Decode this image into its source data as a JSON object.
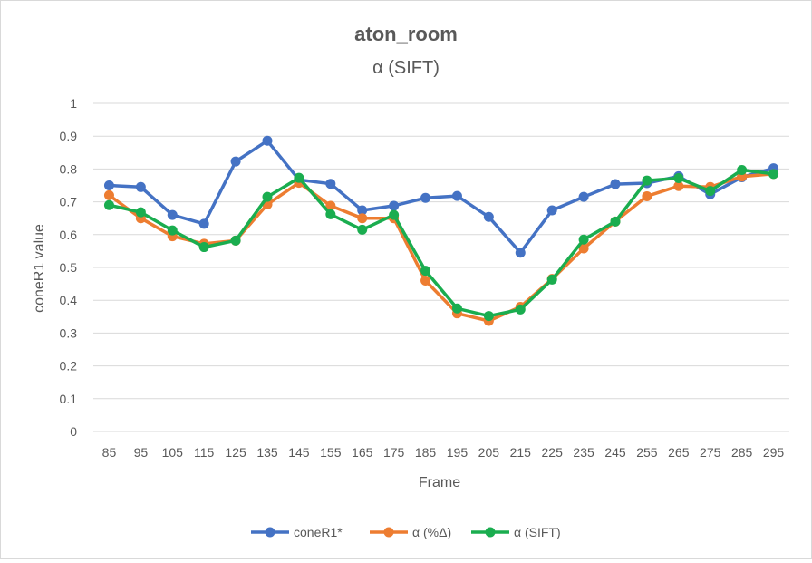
{
  "chart_data": {
    "type": "line",
    "title": "aton_room",
    "subtitle": "α (SIFT)",
    "xlabel": "Frame",
    "ylabel": "coneR1 value",
    "ylim": [
      0,
      1
    ],
    "yticks": [
      0,
      0.1,
      0.2,
      0.3,
      0.4,
      0.5,
      0.6,
      0.7,
      0.8,
      0.9,
      1
    ],
    "ytick_labels": [
      "0",
      "0.1",
      "0.2",
      "0.3",
      "0.4",
      "0.5",
      "0.6",
      "0.7",
      "0.8",
      "0.9",
      "1"
    ],
    "x": [
      "85",
      "95",
      "105",
      "115",
      "125",
      "135",
      "145",
      "155",
      "165",
      "175",
      "185",
      "195",
      "205",
      "215",
      "225",
      "235",
      "245",
      "255",
      "265",
      "275",
      "285",
      "295"
    ],
    "grid": true,
    "legend_position": "bottom",
    "series": [
      {
        "name": "coneR1*",
        "color": "#4472C4",
        "values": [
          0.75,
          0.745,
          0.66,
          0.633,
          0.823,
          0.886,
          0.767,
          0.755,
          0.674,
          0.688,
          0.712,
          0.718,
          0.654,
          0.545,
          0.674,
          0.715,
          0.754,
          0.757,
          0.778,
          0.723,
          0.775,
          0.802
        ]
      },
      {
        "name": "α (%Δ)",
        "color": "#ED7D31",
        "values": [
          0.72,
          0.65,
          0.595,
          0.572,
          0.582,
          0.692,
          0.758,
          0.688,
          0.65,
          0.65,
          0.46,
          0.36,
          0.337,
          0.38,
          0.465,
          0.558,
          0.64,
          0.717,
          0.748,
          0.745,
          0.777,
          0.785
        ]
      },
      {
        "name": "α (SIFT)",
        "color": "#1AAD4F",
        "values": [
          0.69,
          0.668,
          0.613,
          0.562,
          0.582,
          0.715,
          0.773,
          0.662,
          0.615,
          0.66,
          0.49,
          0.375,
          0.352,
          0.372,
          0.463,
          0.585,
          0.64,
          0.765,
          0.772,
          0.733,
          0.797,
          0.785
        ]
      }
    ]
  }
}
